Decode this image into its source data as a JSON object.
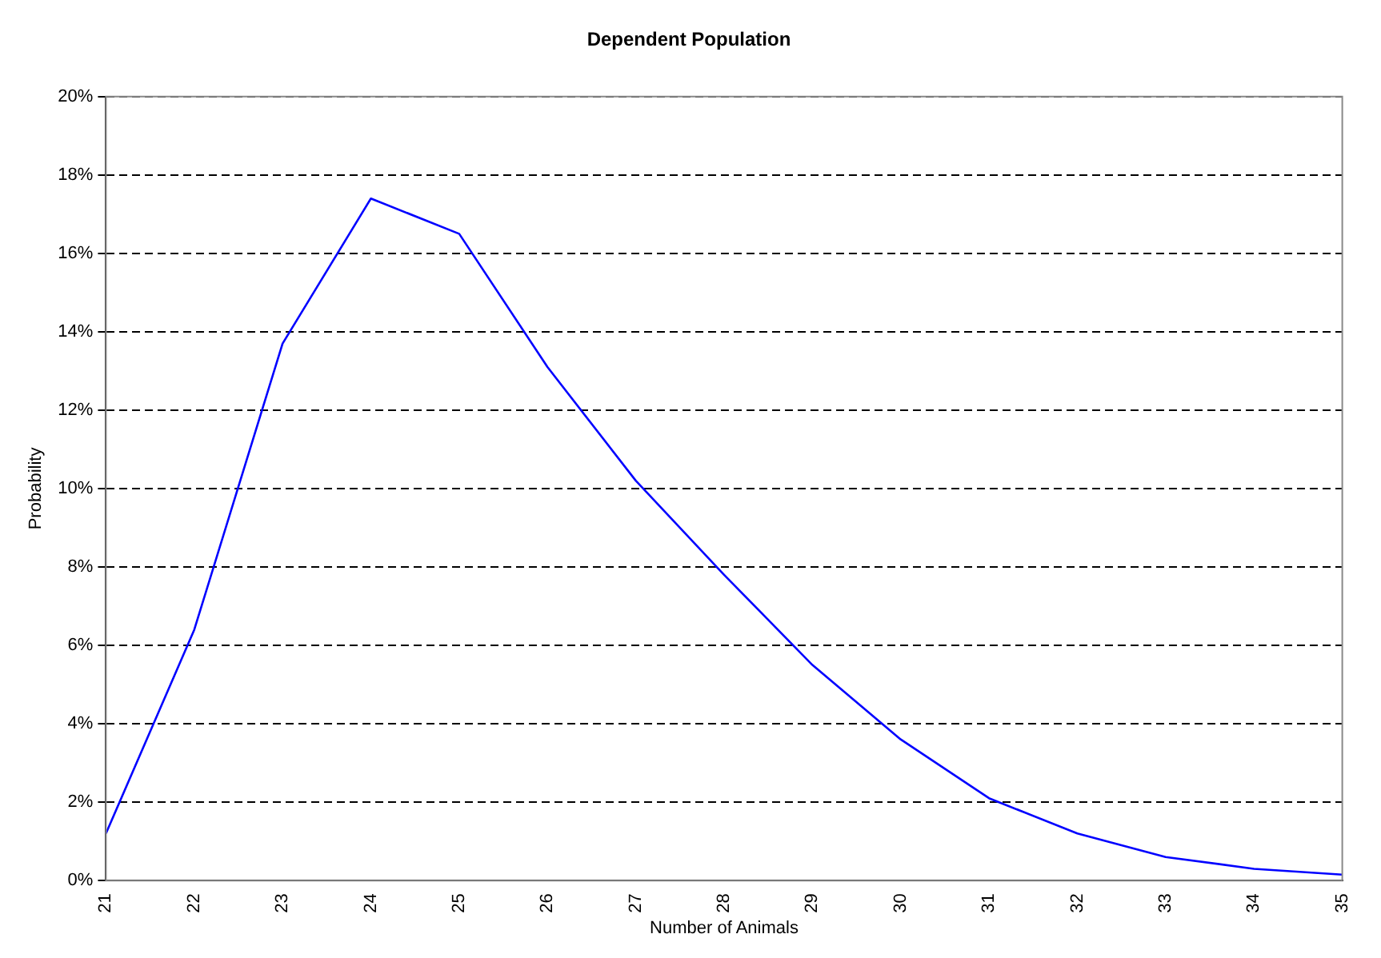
{
  "chart_data": {
    "type": "line",
    "title": "Dependent Population",
    "xlabel": "Number of Animals",
    "ylabel": "Probability",
    "categories": [
      "21",
      "22",
      "23",
      "24",
      "25",
      "26",
      "27",
      "28",
      "29",
      "30",
      "31",
      "32",
      "33",
      "34",
      "35"
    ],
    "series": [
      {
        "color": "#0000ff",
        "values": [
          1.2,
          6.4,
          13.7,
          17.4,
          16.5,
          13.1,
          10.2,
          7.8,
          5.5,
          3.6,
          2.1,
          1.2,
          0.6,
          0.3,
          0.15
        ]
      }
    ],
    "ylim": [
      0,
      20
    ],
    "yticks": [
      {
        "value": 0,
        "label": "0%"
      },
      {
        "value": 2,
        "label": "2%"
      },
      {
        "value": 4,
        "label": "4%"
      },
      {
        "value": 6,
        "label": "6%"
      },
      {
        "value": 8,
        "label": "8%"
      },
      {
        "value": 10,
        "label": "10%"
      },
      {
        "value": 12,
        "label": "12%"
      },
      {
        "value": 14,
        "label": "14%"
      },
      {
        "value": 16,
        "label": "16%"
      },
      {
        "value": 18,
        "label": "18%"
      },
      {
        "value": 20,
        "label": "20%"
      }
    ],
    "grid": "y",
    "legend": false,
    "marker": "none",
    "line_style": "solid"
  }
}
